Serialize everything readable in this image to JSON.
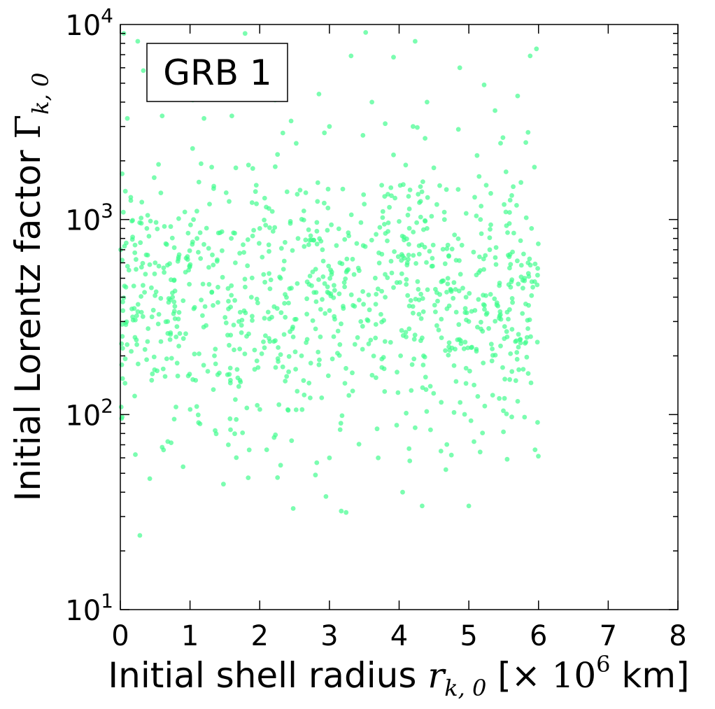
{
  "chart_data": {
    "type": "scatter",
    "annotation": "GRB 1",
    "xlabel": {
      "prefix": "Initial shell radius ",
      "symbol": "r",
      "subscript": "k, 0",
      "unit_open": " [× ",
      "unit_base": "10",
      "unit_exp": "6",
      "unit_close": " km]"
    },
    "ylabel": {
      "prefix": "Initial Lorentz factor ",
      "symbol": "Γ",
      "subscript": "k, 0"
    },
    "xlim": [
      0,
      8
    ],
    "ylim": [
      10,
      10000
    ],
    "yscale": "log",
    "x_ticks": [
      "0",
      "1",
      "2",
      "3",
      "4",
      "5",
      "6",
      "7",
      "8"
    ],
    "y_ticks": [
      {
        "base": "10",
        "exp": "1",
        "value": 10
      },
      {
        "base": "10",
        "exp": "2",
        "value": 100
      },
      {
        "base": "10",
        "exp": "3",
        "value": 1000
      },
      {
        "base": "10",
        "exp": "4",
        "value": 10000
      }
    ],
    "grid": false,
    "marker_color": "#3dfc8a",
    "point_count": 1000,
    "x_range_of_points": [
      0,
      6
    ],
    "y_range_of_points": [
      24,
      9000
    ],
    "y_median": 400,
    "points": [
      [
        0.05,
        9000
      ],
      [
        0.25,
        8200
      ],
      [
        1.79,
        9000
      ],
      [
        3.31,
        6900
      ],
      [
        3.52,
        9100
      ],
      [
        3.92,
        6800
      ],
      [
        4.23,
        8200
      ],
      [
        4.87,
        6000
      ],
      [
        5.88,
        6900
      ],
      [
        5.97,
        7500
      ],
      [
        0.33,
        5800
      ],
      [
        0.55,
        4300
      ],
      [
        1.04,
        4100
      ],
      [
        1.82,
        4500
      ],
      [
        2.22,
        4100
      ],
      [
        2.85,
        4400
      ],
      [
        3.61,
        4000
      ],
      [
        4.4,
        4000
      ],
      [
        5.22,
        4900
      ],
      [
        5.7,
        4300
      ],
      [
        0.1,
        3300
      ],
      [
        0.6,
        3400
      ],
      [
        1.2,
        3300
      ],
      [
        1.6,
        3400
      ],
      [
        2.45,
        3200
      ],
      [
        3.0,
        3000
      ],
      [
        3.8,
        3100
      ],
      [
        4.2,
        3000
      ],
      [
        4.85,
        2900
      ],
      [
        5.85,
        2800
      ],
      [
        0.28,
        24
      ],
      [
        2.48,
        33
      ],
      [
        2.95,
        38
      ],
      [
        3.17,
        32
      ],
      [
        4.33,
        34
      ],
      [
        5.0,
        34
      ],
      [
        1.48,
        44
      ],
      [
        2.8,
        49
      ],
      [
        4.05,
        40
      ],
      [
        5.55,
        59
      ],
      [
        0.9,
        54
      ],
      [
        2.3,
        55
      ],
      [
        3.0,
        60
      ],
      [
        3.7,
        60
      ],
      [
        4.6,
        65
      ],
      [
        5.95,
        66
      ],
      [
        0.6,
        68
      ],
      [
        1.55,
        70
      ],
      [
        2.1,
        66
      ],
      [
        4.75,
        62
      ],
      [
        0.02,
        180
      ],
      [
        0.2,
        350
      ],
      [
        0.5,
        600
      ],
      [
        0.8,
        250
      ],
      [
        1.1,
        800
      ],
      [
        1.4,
        450
      ],
      [
        1.7,
        300
      ],
      [
        2.0,
        900
      ],
      [
        2.3,
        500
      ],
      [
        2.6,
        200
      ],
      [
        2.9,
        700
      ],
      [
        3.2,
        350
      ],
      [
        3.5,
        1200
      ],
      [
        3.8,
        400
      ],
      [
        4.1,
        250
      ],
      [
        4.4,
        900
      ],
      [
        4.7,
        500
      ],
      [
        5.0,
        300
      ],
      [
        5.3,
        700
      ],
      [
        5.6,
        450
      ],
      [
        5.9,
        900
      ],
      [
        0.15,
        1300
      ],
      [
        0.45,
        150
      ],
      [
        0.75,
        400
      ],
      [
        1.05,
        1000
      ],
      [
        1.35,
        200
      ],
      [
        1.65,
        600
      ],
      [
        1.95,
        1500
      ],
      [
        2.25,
        350
      ],
      [
        2.55,
        800
      ],
      [
        2.85,
        180
      ],
      [
        3.15,
        600
      ],
      [
        3.45,
        300
      ],
      [
        3.75,
        1500
      ],
      [
        4.05,
        650
      ],
      [
        4.35,
        200
      ],
      [
        4.65,
        1000
      ],
      [
        4.95,
        350
      ],
      [
        5.25,
        1500
      ],
      [
        5.55,
        250
      ],
      [
        5.85,
        600
      ],
      [
        0.08,
        450
      ],
      [
        0.38,
        900
      ],
      [
        0.68,
        300
      ],
      [
        0.98,
        550
      ],
      [
        1.28,
        1200
      ],
      [
        1.58,
        150
      ],
      [
        1.88,
        400
      ],
      [
        2.18,
        1100
      ],
      [
        2.48,
        250
      ]
    ]
  }
}
